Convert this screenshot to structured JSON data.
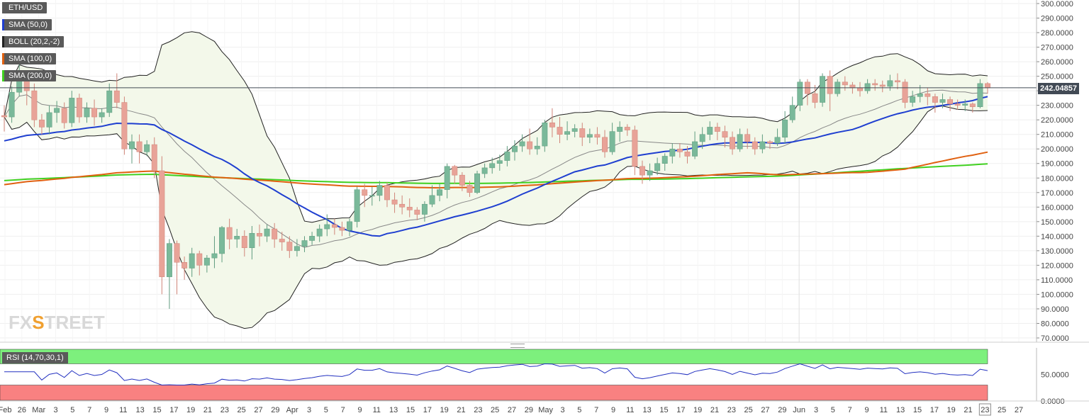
{
  "legend": [
    {
      "label": "ETH/USD",
      "color": "#5a5a5a"
    },
    {
      "label": "SMA (50,0)",
      "color": "#1f3fd0"
    },
    {
      "label": "BOLL (20,2,-2)",
      "color": "#222222"
    },
    {
      "label": "SMA (100,0)",
      "color": "#e06010"
    },
    {
      "label": "SMA (200,0)",
      "color": "#40d020"
    }
  ],
  "watermark": {
    "pre": "FX",
    "x": "S",
    "post": "TREET"
  },
  "price_tag": "242.04857",
  "rsi_label": "RSI (14,70,30,1)",
  "chart_data": {
    "type": "candlestick",
    "symbol": "ETH/USD",
    "current_price": 242.04857,
    "ylim": [
      65,
      305
    ],
    "y_ticks": [
      300,
      290,
      280,
      270,
      260,
      250,
      240,
      230,
      220,
      210,
      200,
      190,
      180,
      170,
      160,
      150,
      140,
      130,
      120,
      110,
      100,
      90,
      80,
      70
    ],
    "x_tick_labels": [
      "Feb",
      "26",
      "Mar",
      "3",
      "5",
      "7",
      "9",
      "11",
      "13",
      "15",
      "17",
      "19",
      "21",
      "23",
      "25",
      "27",
      "29",
      "Apr",
      "3",
      "5",
      "7",
      "9",
      "11",
      "13",
      "15",
      "17",
      "19",
      "21",
      "23",
      "25",
      "27",
      "29",
      "May",
      "3",
      "5",
      "7",
      "9",
      "11",
      "13",
      "15",
      "17",
      "19",
      "21",
      "23",
      "25",
      "27",
      "29",
      "Jun",
      "3",
      "5",
      "7",
      "9",
      "11",
      "13",
      "15",
      "17",
      "19",
      "21",
      "23",
      "25",
      "27"
    ],
    "candles": [
      [
        223,
        222,
        230,
        212
      ],
      [
        222,
        239,
        243,
        218
      ],
      [
        239,
        248,
        260,
        236
      ],
      [
        248,
        240,
        252,
        230
      ],
      [
        240,
        220,
        245,
        215
      ],
      [
        220,
        215,
        224,
        210
      ],
      [
        215,
        225,
        230,
        210
      ],
      [
        225,
        228,
        233,
        218
      ],
      [
        228,
        218,
        232,
        214
      ],
      [
        218,
        235,
        240,
        215
      ],
      [
        235,
        222,
        238,
        218
      ],
      [
        222,
        228,
        232,
        218
      ],
      [
        228,
        222,
        234,
        216
      ],
      [
        222,
        225,
        228,
        218
      ],
      [
        225,
        240,
        245,
        222
      ],
      [
        240,
        232,
        252,
        228
      ],
      [
        232,
        200,
        236,
        196
      ],
      [
        200,
        205,
        210,
        190
      ],
      [
        205,
        198,
        210,
        190
      ],
      [
        198,
        203,
        206,
        195
      ],
      [
        203,
        185,
        208,
        180
      ],
      [
        185,
        112,
        195,
        100
      ],
      [
        112,
        135,
        138,
        90
      ],
      [
        135,
        122,
        137,
        100
      ],
      [
        122,
        118,
        126,
        110
      ],
      [
        118,
        128,
        132,
        112
      ],
      [
        128,
        120,
        130,
        113
      ],
      [
        120,
        125,
        127,
        115
      ],
      [
        125,
        128,
        140,
        118
      ],
      [
        128,
        146,
        147,
        122
      ],
      [
        146,
        138,
        152,
        131
      ],
      [
        138,
        140,
        145,
        132
      ],
      [
        140,
        132,
        144,
        126
      ],
      [
        132,
        142,
        147,
        124
      ],
      [
        142,
        140,
        148,
        133
      ],
      [
        140,
        145,
        148,
        136
      ],
      [
        145,
        138,
        149,
        132
      ],
      [
        138,
        136,
        143,
        130
      ],
      [
        136,
        130,
        140,
        125
      ],
      [
        130,
        133,
        138,
        126
      ],
      [
        133,
        137,
        140,
        129
      ],
      [
        137,
        140,
        143,
        134
      ],
      [
        140,
        145,
        148,
        136
      ],
      [
        145,
        148,
        155,
        140
      ],
      [
        148,
        146,
        152,
        141
      ],
      [
        146,
        144,
        150,
        140
      ],
      [
        144,
        150,
        152,
        140
      ],
      [
        150,
        172,
        174,
        146
      ],
      [
        172,
        168,
        176,
        160
      ],
      [
        168,
        168,
        174,
        161
      ],
      [
        168,
        175,
        178,
        164
      ],
      [
        175,
        165,
        177,
        160
      ],
      [
        165,
        162,
        170,
        156
      ],
      [
        162,
        160,
        168,
        155
      ],
      [
        160,
        158,
        166,
        153
      ],
      [
        158,
        155,
        160,
        151
      ],
      [
        155,
        162,
        164,
        150
      ],
      [
        162,
        168,
        175,
        160
      ],
      [
        168,
        172,
        176,
        164
      ],
      [
        172,
        188,
        190,
        166
      ],
      [
        188,
        182,
        189,
        176
      ],
      [
        182,
        175,
        184,
        171
      ],
      [
        175,
        170,
        178,
        167
      ],
      [
        170,
        183,
        185,
        169
      ],
      [
        183,
        187,
        190,
        180
      ],
      [
        187,
        190,
        194,
        183
      ],
      [
        190,
        192,
        196,
        185
      ],
      [
        192,
        198,
        202,
        188
      ],
      [
        198,
        202,
        206,
        192
      ],
      [
        202,
        205,
        210,
        198
      ],
      [
        205,
        200,
        214,
        196
      ],
      [
        200,
        202,
        208,
        196
      ],
      [
        202,
        218,
        220,
        198
      ],
      [
        218,
        215,
        228,
        208
      ],
      [
        215,
        210,
        222,
        204
      ],
      [
        210,
        212,
        219,
        206
      ],
      [
        212,
        214,
        217,
        208
      ],
      [
        214,
        208,
        218,
        202
      ],
      [
        208,
        210,
        214,
        204
      ],
      [
        210,
        208,
        215,
        203
      ],
      [
        208,
        198,
        213,
        194
      ],
      [
        198,
        212,
        218,
        196
      ],
      [
        212,
        215,
        219,
        205
      ],
      [
        215,
        213,
        217,
        209
      ],
      [
        213,
        188,
        216,
        182
      ],
      [
        188,
        182,
        192,
        176
      ],
      [
        182,
        185,
        190,
        178
      ],
      [
        185,
        190,
        194,
        182
      ],
      [
        190,
        195,
        197,
        185
      ],
      [
        195,
        200,
        204,
        190
      ],
      [
        200,
        198,
        204,
        194
      ],
      [
        198,
        195,
        202,
        190
      ],
      [
        195,
        205,
        212,
        193
      ],
      [
        205,
        210,
        215,
        200
      ],
      [
        210,
        215,
        219,
        206
      ],
      [
        215,
        212,
        218,
        206
      ],
      [
        212,
        208,
        216,
        201
      ],
      [
        208,
        200,
        212,
        196
      ],
      [
        200,
        210,
        214,
        198
      ],
      [
        210,
        205,
        214,
        200
      ],
      [
        205,
        200,
        208,
        196
      ],
      [
        200,
        205,
        210,
        197
      ],
      [
        205,
        204,
        206,
        200
      ],
      [
        204,
        208,
        214,
        202
      ],
      [
        208,
        220,
        226,
        204
      ],
      [
        220,
        230,
        236,
        218
      ],
      [
        230,
        246,
        248,
        226
      ],
      [
        246,
        238,
        248,
        230
      ],
      [
        238,
        232,
        244,
        228
      ],
      [
        232,
        250,
        252,
        229
      ],
      [
        250,
        238,
        254,
        226
      ],
      [
        238,
        246,
        248,
        236
      ],
      [
        246,
        244,
        250,
        240
      ],
      [
        244,
        242,
        246,
        238
      ],
      [
        242,
        240,
        246,
        236
      ],
      [
        240,
        245,
        248,
        238
      ],
      [
        245,
        244,
        248,
        240
      ],
      [
        244,
        243,
        247,
        239
      ],
      [
        243,
        247,
        251,
        240
      ],
      [
        247,
        246,
        252,
        241
      ],
      [
        246,
        232,
        248,
        228
      ],
      [
        232,
        236,
        240,
        229
      ],
      [
        236,
        238,
        244,
        232
      ],
      [
        238,
        236,
        242,
        230
      ],
      [
        236,
        232,
        238,
        225
      ],
      [
        232,
        234,
        238,
        228
      ],
      [
        234,
        231,
        236,
        226
      ],
      [
        231,
        230,
        234,
        227
      ],
      [
        230,
        231,
        234,
        226
      ],
      [
        231,
        229,
        232,
        225
      ],
      [
        229,
        245,
        248,
        228
      ],
      [
        245,
        242,
        246,
        238
      ]
    ],
    "indicators": {
      "sma50": {
        "name": "SMA (50,0)",
        "color": "#1f3fd0"
      },
      "sma100": {
        "name": "SMA (100,0)",
        "color": "#e06010"
      },
      "sma200": {
        "name": "SMA (200,0)",
        "color": "#40d020"
      },
      "bollinger": {
        "name": "BOLL (20,2,-2)",
        "color": "#222222"
      }
    },
    "rsi": {
      "name": "RSI (14,70,30,1)",
      "overbought": 70,
      "oversold": 30,
      "y_ticks": [
        50,
        0
      ],
      "tick_labels": [
        "50.0000",
        "0.0000"
      ]
    },
    "colors": {
      "up": "#7ab99a",
      "down": "#e8a398",
      "up_border": "#5f9c7f",
      "down_border": "#d08478",
      "last_bull": "#2f7a5a",
      "last_bear": "#c4452f"
    },
    "tick_format": "0.0000"
  }
}
